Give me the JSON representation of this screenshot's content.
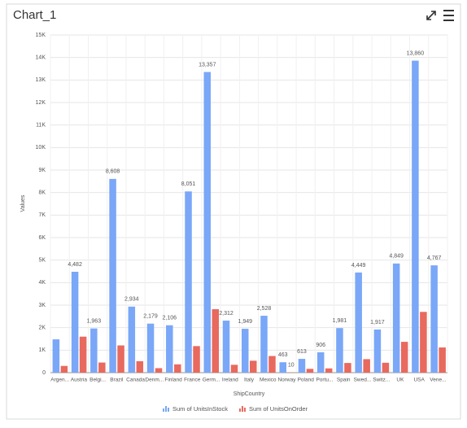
{
  "chart_data": {
    "type": "bar",
    "title": "Chart_1",
    "x_label": "ShipCountry",
    "y_label": "Values",
    "categories": [
      "Argen...",
      "Austria",
      "Belgi...",
      "Brazil",
      "Canada",
      "Denm...",
      "Finland",
      "France",
      "Germ...",
      "Ireland",
      "Italy",
      "Mexico",
      "Norway",
      "Poland",
      "Portu...",
      "Spain",
      "Swed...",
      "Switz...",
      "UK",
      "USA",
      "Vene..."
    ],
    "series": [
      {
        "name": "Sum of UnitsInStock",
        "color": "#7aa7f7",
        "values": [
          1480,
          4482,
          1963,
          8608,
          2934,
          2179,
          2106,
          8051,
          13357,
          2312,
          1949,
          2528,
          463,
          613,
          906,
          1981,
          4449,
          1917,
          4849,
          13860,
          4767
        ],
        "value_labels": [
          null,
          "4,482",
          "1,963",
          "8,608",
          "2,934",
          "2,179",
          "2,106",
          "8,051",
          "13,357",
          "2,312",
          "1,949",
          "2,528",
          "463",
          "613",
          "906",
          "1,981",
          "4,449",
          "1,917",
          "4,849",
          "13,860",
          "4,767"
        ]
      },
      {
        "name": "Sum of UnitsOnOrder",
        "color": "#e8695e",
        "values": [
          300,
          1600,
          450,
          1210,
          510,
          200,
          370,
          1180,
          2820,
          350,
          530,
          740,
          10,
          170,
          190,
          430,
          600,
          440,
          1370,
          2700,
          1120
        ],
        "value_labels": [
          null,
          null,
          null,
          null,
          null,
          null,
          null,
          null,
          null,
          null,
          null,
          null,
          "10",
          null,
          null,
          null,
          null,
          null,
          null,
          null,
          null
        ]
      }
    ],
    "ylim": [
      0,
      15000
    ],
    "yticks": [
      0,
      {
        "value": 1000,
        "label": "1K"
      },
      {
        "value": 2000,
        "label": "2K"
      },
      {
        "value": 3000,
        "label": "3K"
      },
      {
        "value": 4000,
        "label": "4K"
      },
      {
        "value": 5000,
        "label": "5K"
      },
      {
        "value": 6000,
        "label": "6K"
      },
      {
        "value": 7000,
        "label": "7K"
      },
      {
        "value": 8000,
        "label": "8K"
      },
      {
        "value": 9000,
        "label": "9K"
      },
      {
        "value": 10000,
        "label": "10K"
      },
      {
        "value": 11000,
        "label": "11K"
      },
      {
        "value": 12000,
        "label": "12K"
      },
      {
        "value": 13000,
        "label": "13K"
      },
      {
        "value": 14000,
        "label": "14K"
      },
      {
        "value": 15000,
        "label": "15K"
      }
    ],
    "grid": true,
    "legend": "bottom"
  }
}
